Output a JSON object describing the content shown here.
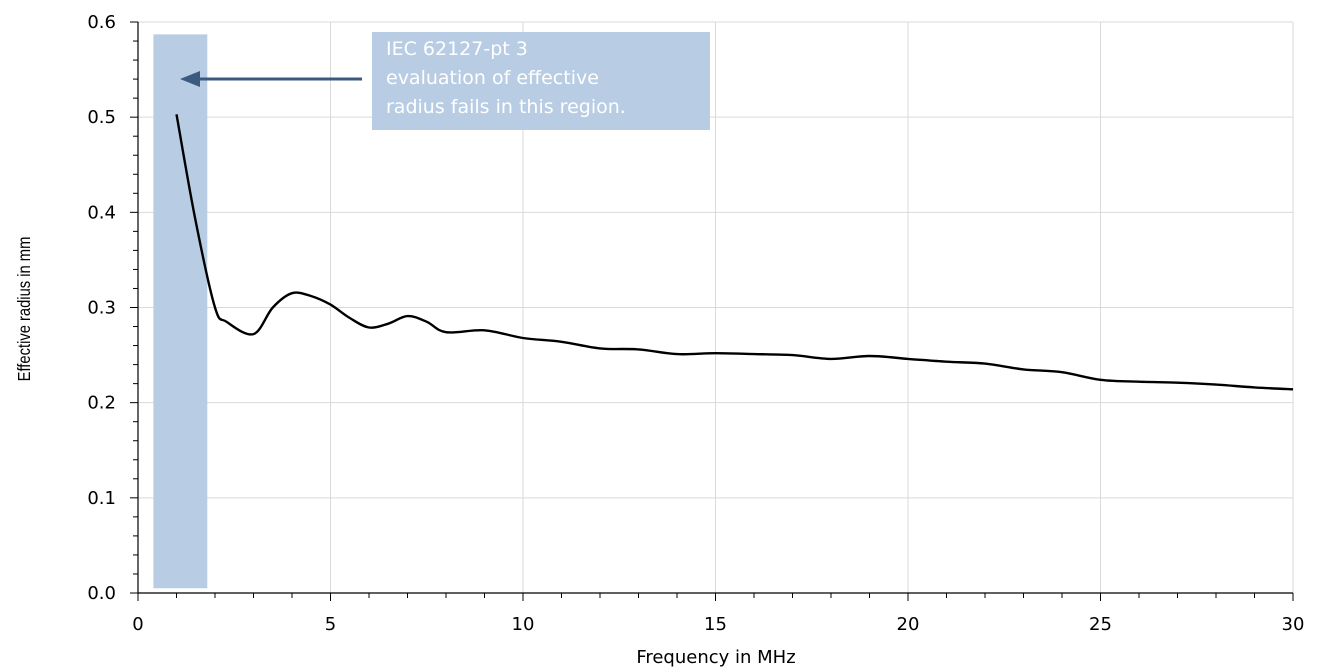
{
  "chart_data": {
    "type": "line",
    "xlabel": "Frequency in MHz",
    "ylabel": "Effective  radius in mm",
    "xlim": [
      0,
      30
    ],
    "ylim": [
      0,
      0.6
    ],
    "x_ticks": [
      0,
      5,
      10,
      15,
      20,
      25,
      30
    ],
    "y_ticks": [
      "0.0",
      "0.1",
      "0.2",
      "0.3",
      "0.4",
      "0.5",
      "0.6"
    ],
    "grid": "vertical",
    "line_color": "#000000",
    "series": [
      {
        "x": [
          1,
          1.5,
          2,
          2.3,
          3,
          3.5,
          4,
          4.5,
          5,
          5.5,
          6,
          6.5,
          7,
          7.5,
          8,
          9,
          10,
          11,
          12,
          13,
          14,
          15,
          16,
          17,
          18,
          19,
          20,
          21,
          22,
          23,
          24,
          25,
          26,
          27,
          28,
          29,
          30
        ],
        "y": [
          0.503,
          0.39,
          0.3,
          0.285,
          0.272,
          0.3,
          0.315,
          0.312,
          0.303,
          0.289,
          0.279,
          0.283,
          0.291,
          0.285,
          0.274,
          0.276,
          0.268,
          0.264,
          0.257,
          0.256,
          0.251,
          0.252,
          0.251,
          0.25,
          0.246,
          0.249,
          0.246,
          0.243,
          0.241,
          0.235,
          0.232,
          0.224,
          0.222,
          0.221,
          0.219,
          0.216,
          0.214
        ]
      }
    ],
    "shaded_region": {
      "x": [
        0.4,
        1.8
      ],
      "y": [
        0.005,
        0.587
      ],
      "color": "#b8cce4"
    },
    "annotation": {
      "lines": [
        "IEC 62127-pt 3",
        "evaluation  of effective",
        "radius fails in this region."
      ],
      "box_color": "#b8cce4",
      "arrow_color": "#3b5a7e"
    }
  }
}
